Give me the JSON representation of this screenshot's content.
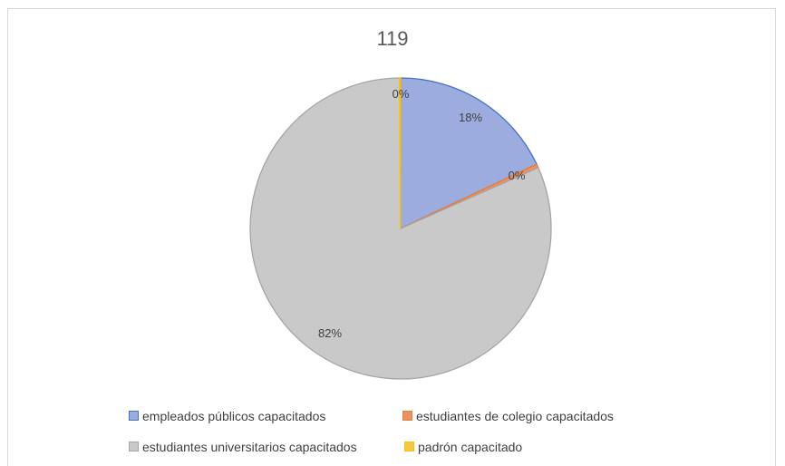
{
  "chart_data": {
    "type": "pie",
    "title": "119",
    "categories": [
      "empleados públicos capacitados",
      "estudiantes de colegio capacitados",
      "estudiantes universitarios capacitados",
      "padrón capacitado"
    ],
    "values": [
      18,
      0.4,
      81.6,
      0.1
    ],
    "data_labels": [
      "18%",
      "0%",
      "82%",
      "0%"
    ],
    "colors": [
      "#9dacdf",
      "#e8926a",
      "#c9c9c9",
      "#f5c742"
    ],
    "border_colors": [
      "#4472c4",
      "#ed7d31",
      "#a5a5a5",
      "#ffc000"
    ],
    "legend_placement": "bottom"
  }
}
